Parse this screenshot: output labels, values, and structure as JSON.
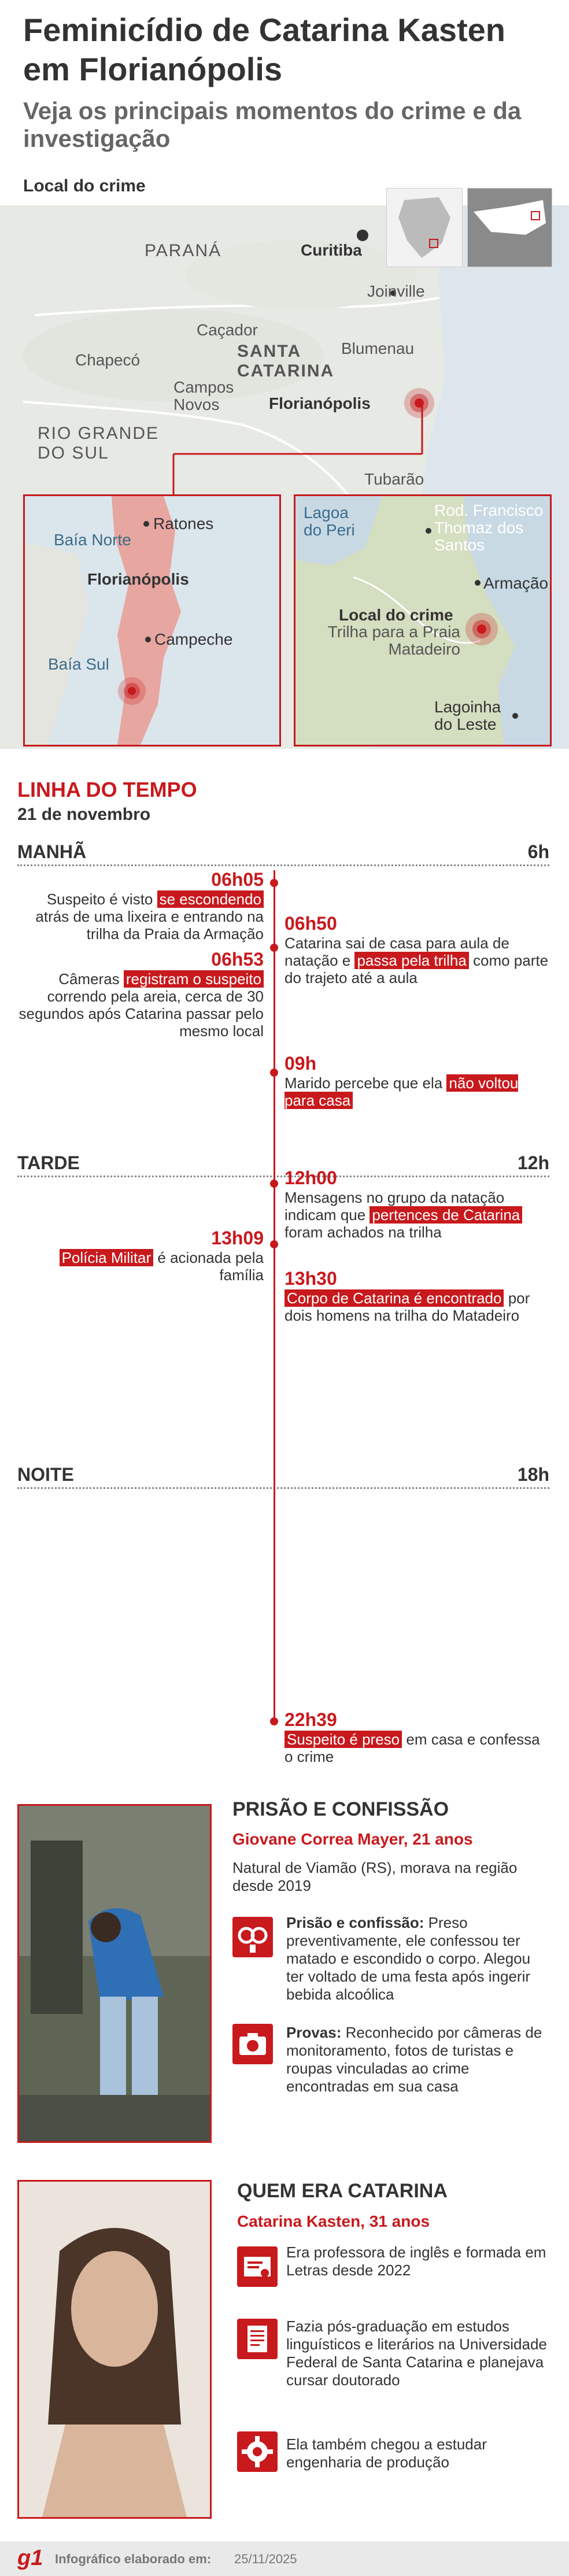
{
  "header": {
    "title": "Feminicídio de Catarina Kasten em Florianópolis",
    "subtitle": "Veja os principais momentos do crime e da investigação",
    "map_heading": "Local do crime"
  },
  "map": {
    "labels": {
      "parana": "PARANÁ",
      "curitiba": "Curitiba",
      "joinville": "Joinville",
      "cacador": "Caçador",
      "blumenau": "Blumenau",
      "chapeco": "Chapecó",
      "santa_catarina": "SANTA CATARINA",
      "campos_novos": "Campos Novos",
      "florianopolis": "Florianópolis",
      "rio_grande": "RIO GRANDE DO SUL",
      "tubarao": "Tubarão"
    },
    "inset_left": {
      "ratones": "Ratones",
      "baia_norte": "Baía Norte",
      "florianopolis": "Florianópolis",
      "campeche": "Campeche",
      "baia_sul": "Baía Sul"
    },
    "inset_right": {
      "lagoa": "Lagoa do Peri",
      "rodovia": "Rod. Francisco Thomaz dos Santos",
      "armacao": "Armação",
      "local_crime": "Local do crime",
      "trilha": "Trilha para a Praia Matadeiro",
      "lagoinha": "Lagoinha do Leste"
    }
  },
  "timeline": {
    "heading": "LINHA DO TEMPO",
    "date": "21 de novembro",
    "periods": [
      {
        "label": "MANHÃ",
        "hour": "6h"
      },
      {
        "label": "TARDE",
        "hour": "12h"
      },
      {
        "label": "NOITE",
        "hour": "18h"
      }
    ],
    "events": {
      "e1": {
        "time": "06h05",
        "pre": "Suspeito é visto ",
        "hl": "se escondendo",
        "post": " atrás de uma lixeira e entrando na trilha da Praia da Armação"
      },
      "e2": {
        "time": "06h50",
        "pre": "Catarina sai de casa para aula de natação e ",
        "hl": "passa pela trilha",
        "post": " como parte do trajeto até a aula"
      },
      "e3": {
        "time": "06h53",
        "pre": "Câmeras ",
        "hl": "registram o suspeito",
        "post": " correndo pela areia, cerca de 30 segundos após Catarina passar pelo mesmo local"
      },
      "e4": {
        "time": "09h",
        "pre": "Marido percebe que ela ",
        "hl": "não voltou para casa",
        "post": ""
      },
      "e5": {
        "time": "12h00",
        "pre": "Mensagens no grupo da natação indicam que ",
        "hl": "pertences de Catarina",
        "post": " foram achados na trilha"
      },
      "e6": {
        "time": "13h09",
        "pre": "",
        "hl": "Polícia Militar",
        "post": " é acionada pela família"
      },
      "e7": {
        "time": "13h30",
        "pre": "",
        "hl": "Corpo de Catarina é encontrado",
        "post": " por dois homens na trilha do Matadeiro"
      },
      "e8": {
        "time": "22h39",
        "pre": "",
        "hl": "Suspeito é preso",
        "post": " em casa e confessa o crime"
      }
    }
  },
  "prisao": {
    "title": "PRISÃO E CONFISSÃO",
    "name": "Giovane Correa Mayer, 21 anos",
    "origin": "Natural de Viamão (RS), morava na região desde 2019",
    "item1_label": "Prisão e confissão:",
    "item1_text": " Preso preventivamente, ele confessou ter matado e escondido o corpo. Alegou ter voltado de uma festa após ingerir bebida alcoólica",
    "item2_label": "Provas:",
    "item2_text": " Reconhecido por câmeras de monitoramento, fotos de turistas e roupas vinculadas ao crime encontradas em sua casa"
  },
  "quem": {
    "title": "QUEM ERA CATARINA",
    "name": "Catarina Kasten, 31 anos",
    "item1": "Era professora de inglês e formada em Letras desde 2022",
    "item2": "Fazia pós-graduação em estudos linguísticos e literários na Universidade Federal de Santa Catarina e planejava cursar doutorado",
    "item3": "Ela também chegou a estudar engenharia de produção"
  },
  "footer": {
    "logo": "g1",
    "label": "Infográfico elaborado em:",
    "date": "25/11/2025"
  },
  "colors": {
    "accent": "#c8191d",
    "text": "#333333",
    "subtitle": "#666666"
  }
}
